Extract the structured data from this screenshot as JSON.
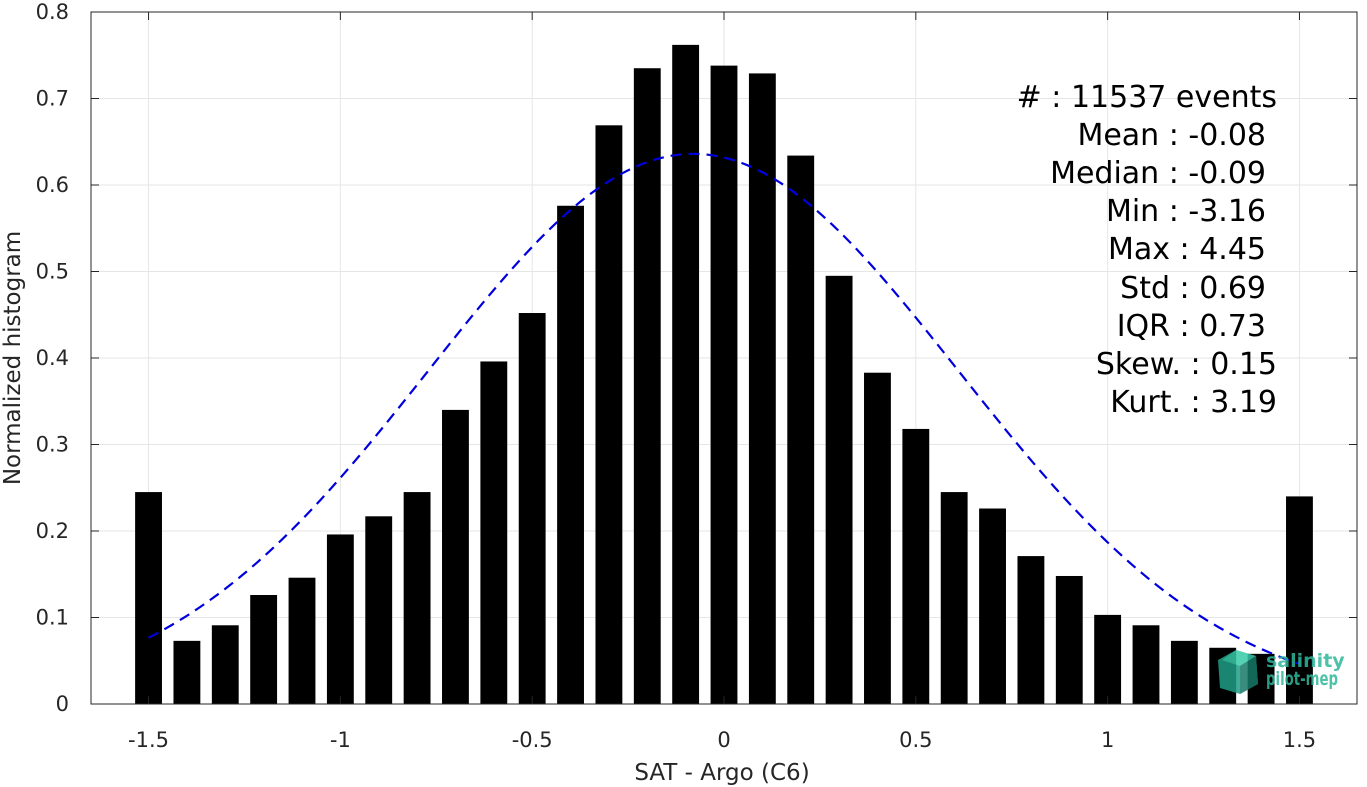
{
  "chart_data": {
    "type": "bar",
    "xlabel": "SAT - Argo (C6)",
    "ylabel": "Normalized histogram",
    "xlim": [
      -1.65,
      1.65
    ],
    "ylim": [
      0,
      0.8
    ],
    "xticks": [
      -1.5,
      -1,
      -0.5,
      0,
      0.5,
      1,
      1.5
    ],
    "xtick_labels": [
      "-1.5",
      "-1",
      "-0.5",
      "0",
      "0.5",
      "1",
      "1.5"
    ],
    "yticks": [
      0,
      0.1,
      0.2,
      0.3,
      0.4,
      0.5,
      0.6,
      0.7,
      0.8
    ],
    "ytick_labels": [
      "0",
      "0.1",
      "0.2",
      "0.3",
      "0.4",
      "0.5",
      "0.6",
      "0.7",
      "0.8"
    ],
    "grid": true,
    "bar_color": "#000000",
    "bar_width": 0.07,
    "bins": [
      -1.5,
      -1.4,
      -1.3,
      -1.2,
      -1.1,
      -1.0,
      -0.9,
      -0.8,
      -0.7,
      -0.6,
      -0.5,
      -0.4,
      -0.3,
      -0.2,
      -0.1,
      0.0,
      0.1,
      0.2,
      0.3,
      0.4,
      0.5,
      0.6,
      0.7,
      0.8,
      0.9,
      1.0,
      1.1,
      1.2,
      1.3,
      1.4,
      1.5
    ],
    "values": [
      0.245,
      0.073,
      0.091,
      0.126,
      0.146,
      0.196,
      0.217,
      0.245,
      0.34,
      0.396,
      0.452,
      0.576,
      0.669,
      0.735,
      0.762,
      0.738,
      0.729,
      0.634,
      0.495,
      0.383,
      0.318,
      0.245,
      0.226,
      0.171,
      0.148,
      0.103,
      0.091,
      0.073,
      0.065,
      0.058,
      0.24
    ],
    "fit_curve": {
      "type": "gaussian",
      "mean": -0.08,
      "std": 0.69,
      "peak": 0.636,
      "x_range": [
        -1.5,
        1.5
      ],
      "color": "#0000dd",
      "style": "dashed"
    },
    "stats_box": {
      "lines": [
        "#  : 11537 events",
        "Mean : -0.08",
        "Median : -0.09",
        "Min : -3.16",
        "Max : 4.45",
        "Std : 0.69",
        "IQR : 0.73",
        "Skew. : 0.15",
        "Kurt. : 3.19"
      ]
    }
  },
  "logo": {
    "line1": "salinity",
    "line2": "pilot-mep"
  }
}
